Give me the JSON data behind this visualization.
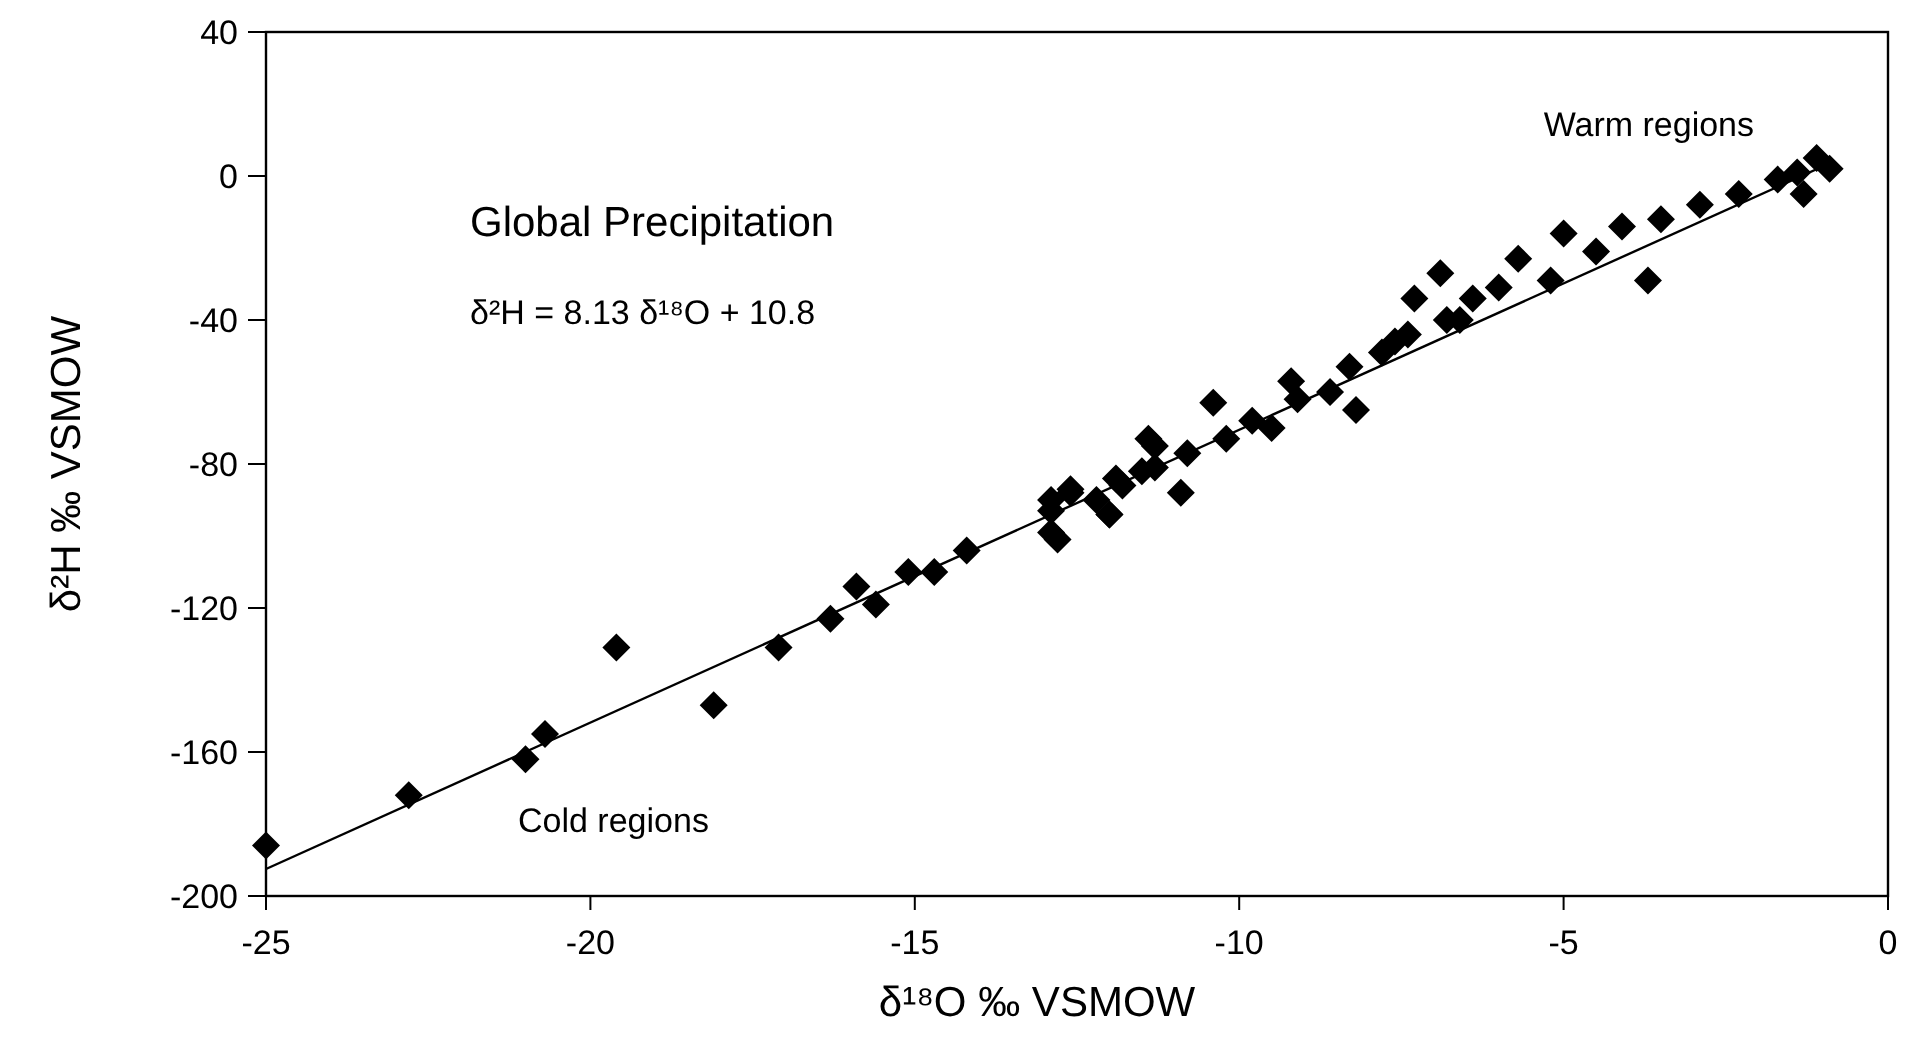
{
  "chart_data": {
    "type": "scatter",
    "xlabel": "δ¹⁸O ‰ VSMOW",
    "ylabel": "δ²H ‰ VSMOW",
    "xlim": [
      -25,
      0
    ],
    "ylim": [
      -200,
      40
    ],
    "xticks": [
      -25,
      -20,
      -15,
      -10,
      -5,
      0
    ],
    "yticks": [
      -200,
      -160,
      -120,
      -80,
      -40,
      0,
      40
    ],
    "grid": false,
    "annotations": [
      "Global Precipitation",
      "δ²H = 8.13 δ¹⁸O + 10.8",
      "Warm regions",
      "Cold regions"
    ],
    "series": [
      {
        "color": "#000000",
        "marker": "diamond",
        "x": [
          -25,
          -22.8,
          -21,
          -20.7,
          -19.6,
          -18.1,
          -17.1,
          -16.3,
          -15.9,
          -15.6,
          -15.1,
          -14.7,
          -14.2,
          -12.9,
          -12.8,
          -12.6,
          -12.2,
          -12,
          -11.8,
          -11.3,
          -11.5,
          -12.9,
          -12.9,
          -12.6,
          -12,
          -11.9,
          -11.4,
          -11.3,
          -10.9,
          -10.8,
          -10.4,
          -10.2,
          -9.8,
          -9.5,
          -9.2,
          -9.1,
          -8.6,
          -8.2,
          -8.3,
          -7.8,
          -7.4,
          -6.8,
          -6.4,
          -7.6,
          -7.3,
          -6.9,
          -6.6,
          -6,
          -5.7,
          -5.2,
          -5,
          -4.5,
          -4.1,
          -3.7,
          -3.5,
          -2.9,
          -2.3,
          -1.7,
          -1.4,
          -1.1,
          -0.9,
          -1.3
        ],
        "values": [
          -186,
          -172,
          -162,
          -155,
          -131,
          -147,
          -131,
          -123,
          -114,
          -119,
          -110,
          -110,
          -104,
          -93,
          -101,
          -88,
          -90,
          -94,
          -86,
          -75,
          -82,
          -90,
          -99,
          -87,
          -94,
          -84,
          -73,
          -81,
          -88,
          -77,
          -63,
          -73,
          -68,
          -70,
          -57,
          -62,
          -60,
          -65,
          -53,
          -49,
          -44,
          -40,
          -34,
          -46,
          -34,
          -27,
          -40,
          -31,
          -23,
          -29,
          -16,
          -21,
          -14,
          -29,
          -12,
          -8,
          -5,
          -1,
          1,
          5,
          2,
          -5
        ]
      },
      {
        "type": "line",
        "color": "#000000",
        "marker": "none",
        "x": [
          -25,
          -1
        ],
        "values": [
          -192.5,
          2.7
        ]
      }
    ]
  }
}
